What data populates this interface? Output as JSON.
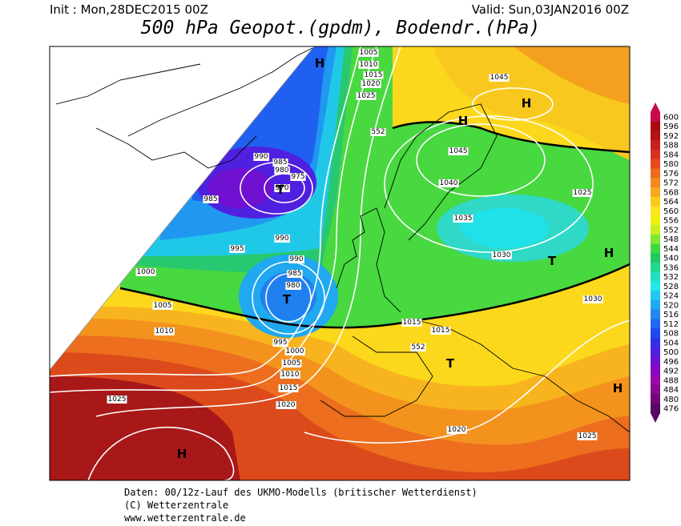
{
  "header": {
    "init": "Init : Mon,28DEC2015 00Z",
    "valid": "Valid: Sun,03JAN2016 00Z",
    "title": "500 hPa Geopot.(gpdm), Bodendr.(hPa)"
  },
  "map": {
    "isobar_labels": [
      1005,
      1010,
      1015,
      1020,
      1025,
      552,
      1045,
      1045,
      1040,
      1035,
      1030,
      1025,
      1030,
      990,
      985,
      980,
      975,
      970,
      985,
      990,
      995,
      990,
      985,
      980,
      1000,
      1005,
      1010,
      995,
      1000,
      1005,
      1010,
      1015,
      1020,
      1025,
      1015,
      1015,
      552,
      1020,
      1025
    ],
    "pressure_centers": [
      "H",
      "H",
      "H",
      "T",
      "T",
      "T",
      "H",
      "T",
      "H",
      "H"
    ]
  },
  "legend": {
    "levels": [
      600,
      596,
      592,
      588,
      584,
      580,
      576,
      572,
      568,
      564,
      560,
      556,
      552,
      548,
      544,
      540,
      536,
      532,
      528,
      524,
      520,
      516,
      512,
      508,
      504,
      500,
      496,
      492,
      488,
      484,
      480,
      476
    ],
    "colors": [
      "#c80a4a",
      "#a80c0c",
      "#b41414",
      "#c82020",
      "#d83020",
      "#e64a1e",
      "#ee6a1e",
      "#f48a1e",
      "#f8a81e",
      "#fcc81e",
      "#fce41e",
      "#f0f010",
      "#c8f020",
      "#80e830",
      "#40d840",
      "#20c860",
      "#20d890",
      "#20e0c0",
      "#20e8e8",
      "#20c8f0",
      "#20a8f0",
      "#2088f0",
      "#2068f0",
      "#2048f0",
      "#3030e8",
      "#5020e0",
      "#7010d0",
      "#8808c0",
      "#9808a8",
      "#880890",
      "#700878",
      "#580860"
    ]
  },
  "footer": {
    "lines": [
      "Daten: 00/12z-Lauf des UKMO-Modells (britischer Wetterdienst)",
      "(C) Wetterzentrale",
      "www.wetterzentrale.de"
    ]
  }
}
